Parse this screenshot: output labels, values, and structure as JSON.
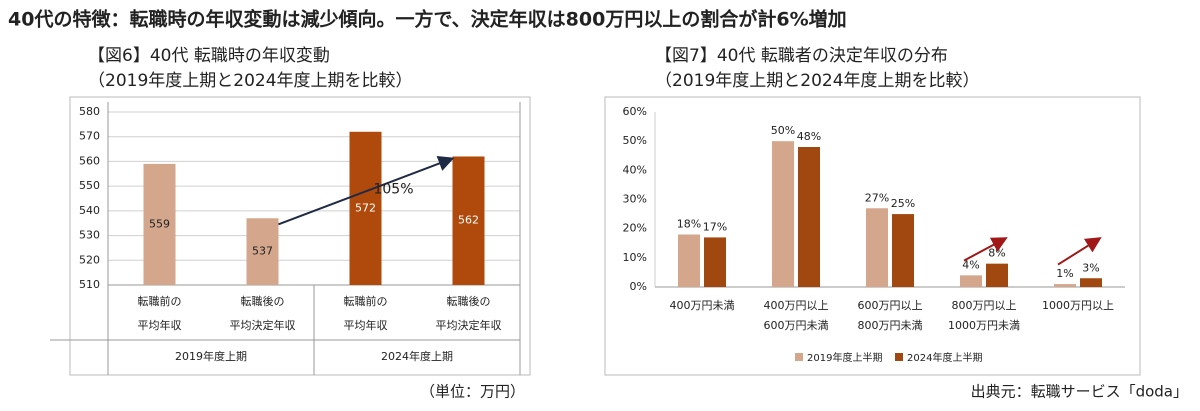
{
  "title": "40代の特徴：転職時の年収変動は減少傾向。一方で、決定年収は800万円以上の割合が計6%増加",
  "chart_data": [
    {
      "type": "bar",
      "title": "【図6】40代 転職時の年収変動",
      "subtitle": "（2019年度上期と2024年度上期を比較）",
      "categories": [
        [
          "転職前の",
          "平均年収"
        ],
        [
          "転職後の",
          "平均決定年収"
        ],
        [
          "転職前の",
          "平均年収"
        ],
        [
          "転職後の",
          "平均決定年収"
        ]
      ],
      "values": [
        559,
        537,
        572,
        562
      ],
      "colors": [
        "#d4a78d",
        "#d4a78d",
        "#b04a0c",
        "#b04a0c"
      ],
      "group_labels": [
        "2019年度上期",
        "2024年度上期"
      ],
      "annotation": "105%",
      "ylim": [
        510,
        580
      ],
      "yticks": [
        510,
        520,
        530,
        540,
        550,
        560,
        570,
        580
      ],
      "grid": true
    },
    {
      "type": "grouped_bar",
      "title": "【図7】40代 転職者の決定年収の分布",
      "subtitle": "（2019年度上期と2024年度上期を比較）",
      "categories": [
        [
          "400万円未満"
        ],
        [
          "400万円以上",
          "600万円未満"
        ],
        [
          "600万円以上",
          "800万円未満"
        ],
        [
          "800万円以上",
          "1000万円未満"
        ],
        [
          "1000万円以上"
        ]
      ],
      "series": [
        {
          "name": "2019年度上半期",
          "color": "#d4a78d",
          "values": [
            18,
            50,
            27,
            4,
            1
          ],
          "value_labels": [
            "18%",
            "50%",
            "27%",
            "4%",
            "1%"
          ]
        },
        {
          "name": "2024年度上半期",
          "color": "#a0480f",
          "values": [
            17,
            48,
            25,
            8,
            3
          ],
          "value_labels": [
            "17%",
            "48%",
            "25%",
            "8%",
            "3%"
          ]
        }
      ],
      "ylim": [
        0,
        60
      ],
      "yticks": [
        {
          "value": 0,
          "label": "0%"
        },
        {
          "value": 10,
          "label": "10%"
        },
        {
          "value": 20,
          "label": "20%"
        },
        {
          "value": 30,
          "label": "30%"
        },
        {
          "value": 40,
          "label": "40%"
        },
        {
          "value": 50,
          "label": "50%"
        },
        {
          "value": 60,
          "label": "60%"
        }
      ],
      "grid": false,
      "legend": "bottom"
    }
  ],
  "unit_note": "（単位：万円）",
  "source": "出典元：転職サービス「doda」"
}
